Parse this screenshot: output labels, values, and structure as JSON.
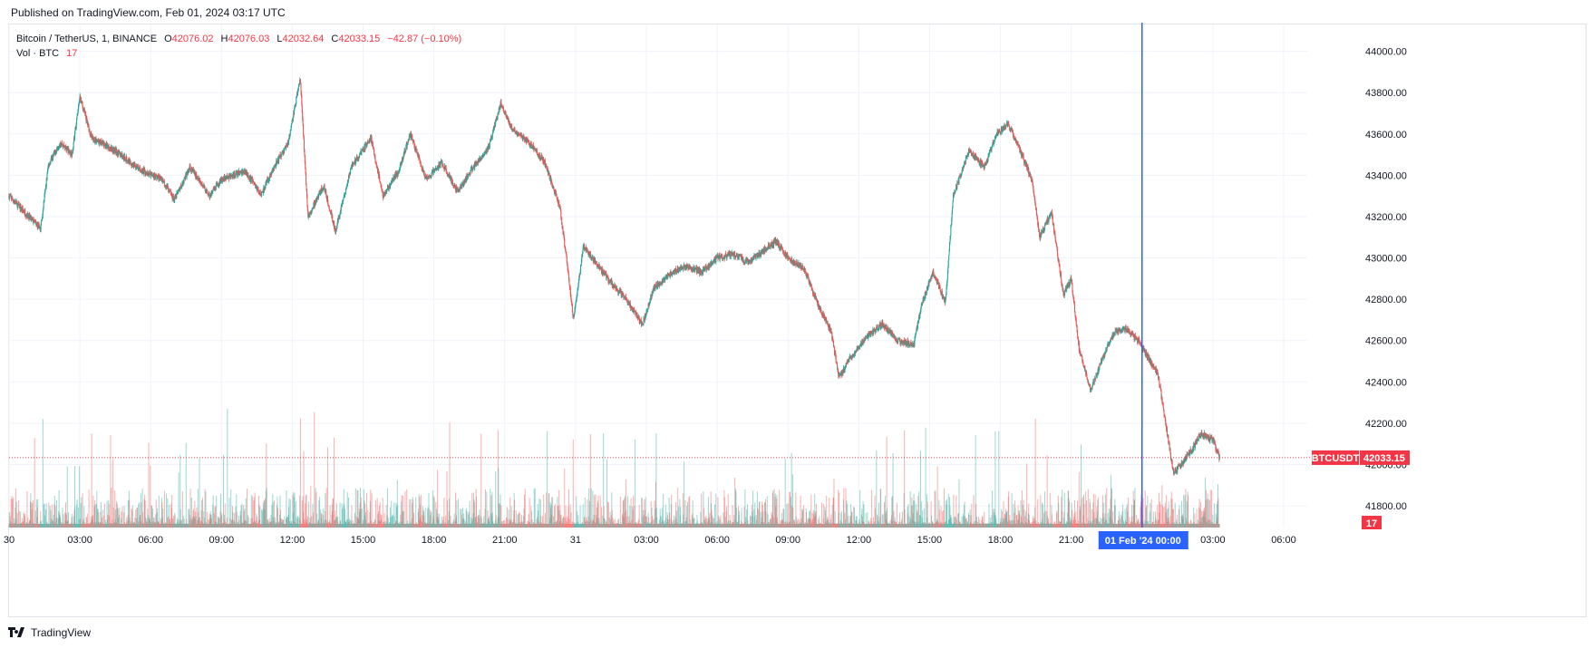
{
  "header": {
    "published": "Published on TradingView.com, Feb 01, 2024 03:17 UTC"
  },
  "legend": {
    "symbol": "Bitcoin / TetherUS, 1, BINANCE",
    "o_label": "O",
    "o_value": "42076.02",
    "h_label": "H",
    "h_value": "42076.03",
    "l_label": "L",
    "l_value": "42032.64",
    "c_label": "C",
    "c_value": "42033.15",
    "change": "−42.87 (−0.10%)",
    "vol_label": "Vol · BTC",
    "vol_value": "17"
  },
  "footer": {
    "brand": "TradingView",
    "logo_icon": "tradingview-logo-icon"
  },
  "colors": {
    "up": "#26a69a",
    "down": "#ef5350",
    "crosshair": "#2962ff",
    "price_tag": "#f23645"
  },
  "chart_data": {
    "type": "candlestick",
    "symbol": "BTCUSDT",
    "interval_minutes": 1,
    "ylim": [
      41700,
      44100
    ],
    "y_ticks": [
      "44000.00",
      "43800.00",
      "43600.00",
      "43400.00",
      "43200.00",
      "43000.00",
      "42800.00",
      "42600.00",
      "42400.00",
      "42200.00",
      "42000.00",
      "41800.00"
    ],
    "x_ticks": [
      {
        "label": "30",
        "time": "Jan 30 00:00"
      },
      {
        "label": "03:00",
        "time": "Jan 30 03:00"
      },
      {
        "label": "06:00",
        "time": "Jan 30 06:00"
      },
      {
        "label": "09:00",
        "time": "Jan 30 09:00"
      },
      {
        "label": "12:00",
        "time": "Jan 30 12:00"
      },
      {
        "label": "15:00",
        "time": "Jan 30 15:00"
      },
      {
        "label": "18:00",
        "time": "Jan 30 18:00"
      },
      {
        "label": "21:00",
        "time": "Jan 30 21:00"
      },
      {
        "label": "31",
        "time": "Jan 31 00:00"
      },
      {
        "label": "03:00",
        "time": "Jan 31 03:00"
      },
      {
        "label": "06:00",
        "time": "Jan 31 06:00"
      },
      {
        "label": "09:00",
        "time": "Jan 31 09:00"
      },
      {
        "label": "12:00",
        "time": "Jan 31 12:00"
      },
      {
        "label": "15:00",
        "time": "Jan 31 15:00"
      },
      {
        "label": "18:00",
        "time": "Jan 31 18:00"
      },
      {
        "label": "21:00",
        "time": "Jan 31 21:00"
      },
      {
        "label": "03:00",
        "time": "Feb 01 03:00"
      },
      {
        "label": "06:00",
        "time": "Feb 01 06:00"
      }
    ],
    "crosshair_label": "01 Feb '24   00:00",
    "last_price": 42033.15,
    "last_price_label": "42033.15",
    "symbol_tag": "BTCUSDT",
    "volume_tag": "17",
    "price_path": [
      [
        "Jan 30 00:00",
        43300
      ],
      [
        "Jan 30 00:40",
        43220
      ],
      [
        "Jan 30 01:20",
        43140
      ],
      [
        "Jan 30 01:40",
        43450
      ],
      [
        "Jan 30 02:10",
        43560
      ],
      [
        "Jan 30 02:40",
        43500
      ],
      [
        "Jan 30 03:00",
        43780
      ],
      [
        "Jan 30 03:30",
        43580
      ],
      [
        "Jan 30 04:30",
        43520
      ],
      [
        "Jan 30 05:30",
        43430
      ],
      [
        "Jan 30 06:30",
        43380
      ],
      [
        "Jan 30 07:00",
        43280
      ],
      [
        "Jan 30 07:40",
        43440
      ],
      [
        "Jan 30 08:30",
        43300
      ],
      [
        "Jan 30 09:00",
        43380
      ],
      [
        "Jan 30 10:00",
        43420
      ],
      [
        "Jan 30 10:40",
        43310
      ],
      [
        "Jan 30 11:20",
        43460
      ],
      [
        "Jan 30 11:50",
        43560
      ],
      [
        "Jan 30 12:20",
        43870
      ],
      [
        "Jan 30 12:40",
        43200
      ],
      [
        "Jan 30 13:20",
        43350
      ],
      [
        "Jan 30 13:50",
        43130
      ],
      [
        "Jan 30 14:30",
        43440
      ],
      [
        "Jan 30 15:20",
        43580
      ],
      [
        "Jan 30 15:50",
        43300
      ],
      [
        "Jan 30 16:30",
        43420
      ],
      [
        "Jan 30 17:00",
        43600
      ],
      [
        "Jan 30 17:40",
        43380
      ],
      [
        "Jan 30 18:20",
        43460
      ],
      [
        "Jan 30 19:00",
        43320
      ],
      [
        "Jan 30 19:40",
        43440
      ],
      [
        "Jan 30 20:20",
        43540
      ],
      [
        "Jan 30 20:50",
        43750
      ],
      [
        "Jan 30 21:20",
        43620
      ],
      [
        "Jan 30 22:00",
        43560
      ],
      [
        "Jan 30 22:40",
        43470
      ],
      [
        "Jan 30 23:20",
        43250
      ],
      [
        "Jan 30 23:40",
        42950
      ],
      [
        "Jan 30 23:55",
        42700
      ],
      [
        "Jan 31 00:20",
        43060
      ],
      [
        "Jan 31 00:50",
        42980
      ],
      [
        "Jan 31 01:30",
        42880
      ],
      [
        "Jan 31 02:10",
        42800
      ],
      [
        "Jan 31 02:50",
        42680
      ],
      [
        "Jan 31 03:20",
        42860
      ],
      [
        "Jan 31 04:00",
        42920
      ],
      [
        "Jan 31 04:40",
        42960
      ],
      [
        "Jan 31 05:20",
        42930
      ],
      [
        "Jan 31 06:00",
        43000
      ],
      [
        "Jan 31 06:40",
        43020
      ],
      [
        "Jan 31 07:20",
        42980
      ],
      [
        "Jan 31 08:00",
        43040
      ],
      [
        "Jan 31 08:30",
        43080
      ],
      [
        "Jan 31 09:00",
        43000
      ],
      [
        "Jan 31 09:40",
        42950
      ],
      [
        "Jan 31 10:20",
        42760
      ],
      [
        "Jan 31 10:50",
        42640
      ],
      [
        "Jan 31 11:10",
        42420
      ],
      [
        "Jan 31 11:40",
        42520
      ],
      [
        "Jan 31 12:20",
        42620
      ],
      [
        "Jan 31 13:00",
        42680
      ],
      [
        "Jan 31 13:40",
        42600
      ],
      [
        "Jan 31 14:20",
        42580
      ],
      [
        "Jan 31 14:40",
        42780
      ],
      [
        "Jan 31 15:10",
        42930
      ],
      [
        "Jan 31 15:40",
        42780
      ],
      [
        "Jan 31 16:00",
        43300
      ],
      [
        "Jan 31 16:40",
        43520
      ],
      [
        "Jan 31 17:20",
        43440
      ],
      [
        "Jan 31 17:50",
        43600
      ],
      [
        "Jan 31 18:20",
        43650
      ],
      [
        "Jan 31 18:50",
        43520
      ],
      [
        "Jan 31 19:20",
        43380
      ],
      [
        "Jan 31 19:40",
        43100
      ],
      [
        "Jan 31 20:10",
        43220
      ],
      [
        "Jan 31 20:40",
        42820
      ],
      [
        "Jan 31 21:00",
        42900
      ],
      [
        "Jan 31 21:20",
        42560
      ],
      [
        "Jan 31 21:50",
        42360
      ],
      [
        "Jan 31 22:20",
        42520
      ],
      [
        "Jan 31 22:50",
        42640
      ],
      [
        "Jan 31 23:20",
        42660
      ],
      [
        "Jan 31 23:50",
        42600
      ],
      [
        "Feb 01 00:20",
        42500
      ],
      [
        "Feb 01 00:40",
        42440
      ],
      [
        "Feb 01 01:00",
        42200
      ],
      [
        "Feb 01 01:20",
        41960
      ],
      [
        "Feb 01 01:40",
        42000
      ],
      [
        "Feb 01 02:10",
        42080
      ],
      [
        "Feb 01 02:30",
        42150
      ],
      [
        "Feb 01 03:00",
        42120
      ],
      [
        "Feb 01 03:17",
        42033.15
      ]
    ]
  }
}
